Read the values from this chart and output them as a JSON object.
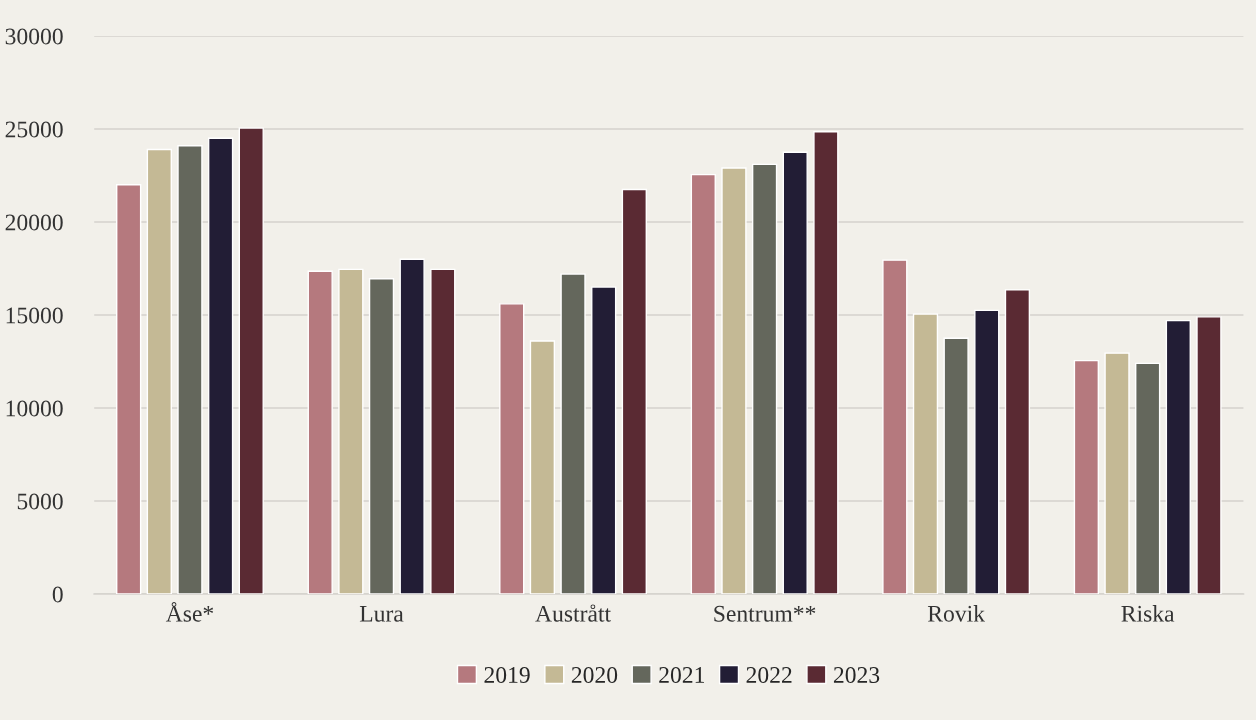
{
  "chart_data": {
    "type": "bar",
    "categories": [
      "Åse*",
      "Lura",
      "Austrått",
      "Sentrum**",
      "Rovik",
      "Riska"
    ],
    "series": [
      {
        "name": "2019",
        "color": "#b5797e",
        "values": [
          22000,
          17350,
          15600,
          22550,
          17950,
          12550
        ]
      },
      {
        "name": "2020",
        "color": "#c4b995",
        "values": [
          23900,
          17450,
          13600,
          22900,
          15050,
          12950
        ]
      },
      {
        "name": "2021",
        "color": "#64675c",
        "values": [
          24100,
          16950,
          17200,
          23100,
          13750,
          12400
        ]
      },
      {
        "name": "2022",
        "color": "#221d35",
        "values": [
          24500,
          18000,
          16500,
          23750,
          15250,
          14700
        ]
      },
      {
        "name": "2023",
        "color": "#5a2a33",
        "values": [
          25050,
          17450,
          21750,
          24850,
          16350,
          14900
        ]
      }
    ],
    "ylim": [
      0,
      30000
    ],
    "yticks": [
      0,
      5000,
      10000,
      15000,
      20000,
      25000,
      30000
    ],
    "grid": "y",
    "legend": "bottom"
  }
}
